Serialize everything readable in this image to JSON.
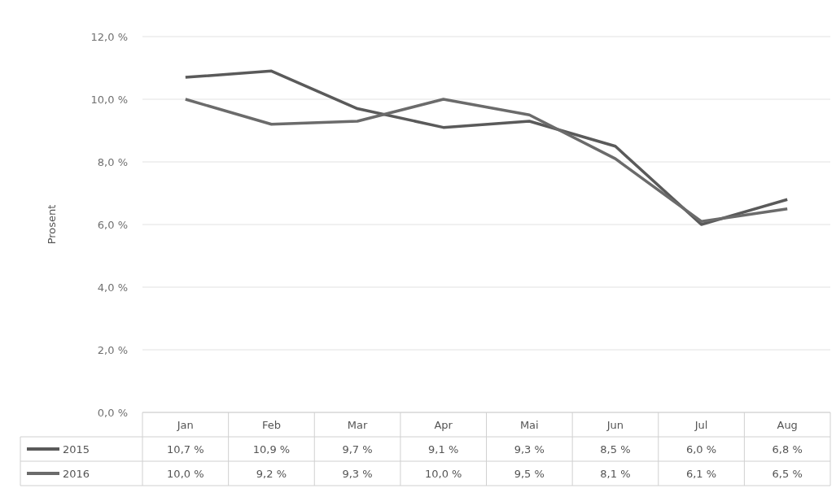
{
  "chart_data": {
    "type": "line",
    "ylabel": "Prosent",
    "categories": [
      "Jan",
      "Feb",
      "Mar",
      "Apr",
      "Mai",
      "Jun",
      "Jul",
      "Aug"
    ],
    "series": [
      {
        "name": "2015",
        "color": "#5a5a5a",
        "values": [
          10.7,
          10.9,
          9.7,
          9.1,
          9.3,
          8.5,
          6.0,
          6.8
        ],
        "value_labels": [
          "10,7 %",
          "10,9 %",
          "9,7 %",
          "9,1 %",
          "9,3 %",
          "8,5 %",
          "6,0 %",
          "6,8 %"
        ]
      },
      {
        "name": "2016",
        "color": "#6b6b6b",
        "values": [
          10.0,
          9.2,
          9.3,
          10.0,
          9.5,
          8.1,
          6.1,
          6.5
        ],
        "value_labels": [
          "10,0 %",
          "9,2 %",
          "9,3 %",
          "10,0 %",
          "9,5 %",
          "8,1 %",
          "6,1 %",
          "6,5 %"
        ]
      }
    ],
    "ylim": [
      0,
      12
    ],
    "yticks": [
      {
        "value": 0,
        "label": "0,0 %"
      },
      {
        "value": 2,
        "label": "2,0 %"
      },
      {
        "value": 4,
        "label": "4,0 %"
      },
      {
        "value": 6,
        "label": "6,0 %"
      },
      {
        "value": 8,
        "label": "8,0 %"
      },
      {
        "value": 10,
        "label": "10,0 %"
      },
      {
        "value": 12,
        "label": "12,0 %"
      }
    ],
    "grid": "y",
    "legend": "bottom",
    "marker": "none",
    "line_style": "solid"
  }
}
